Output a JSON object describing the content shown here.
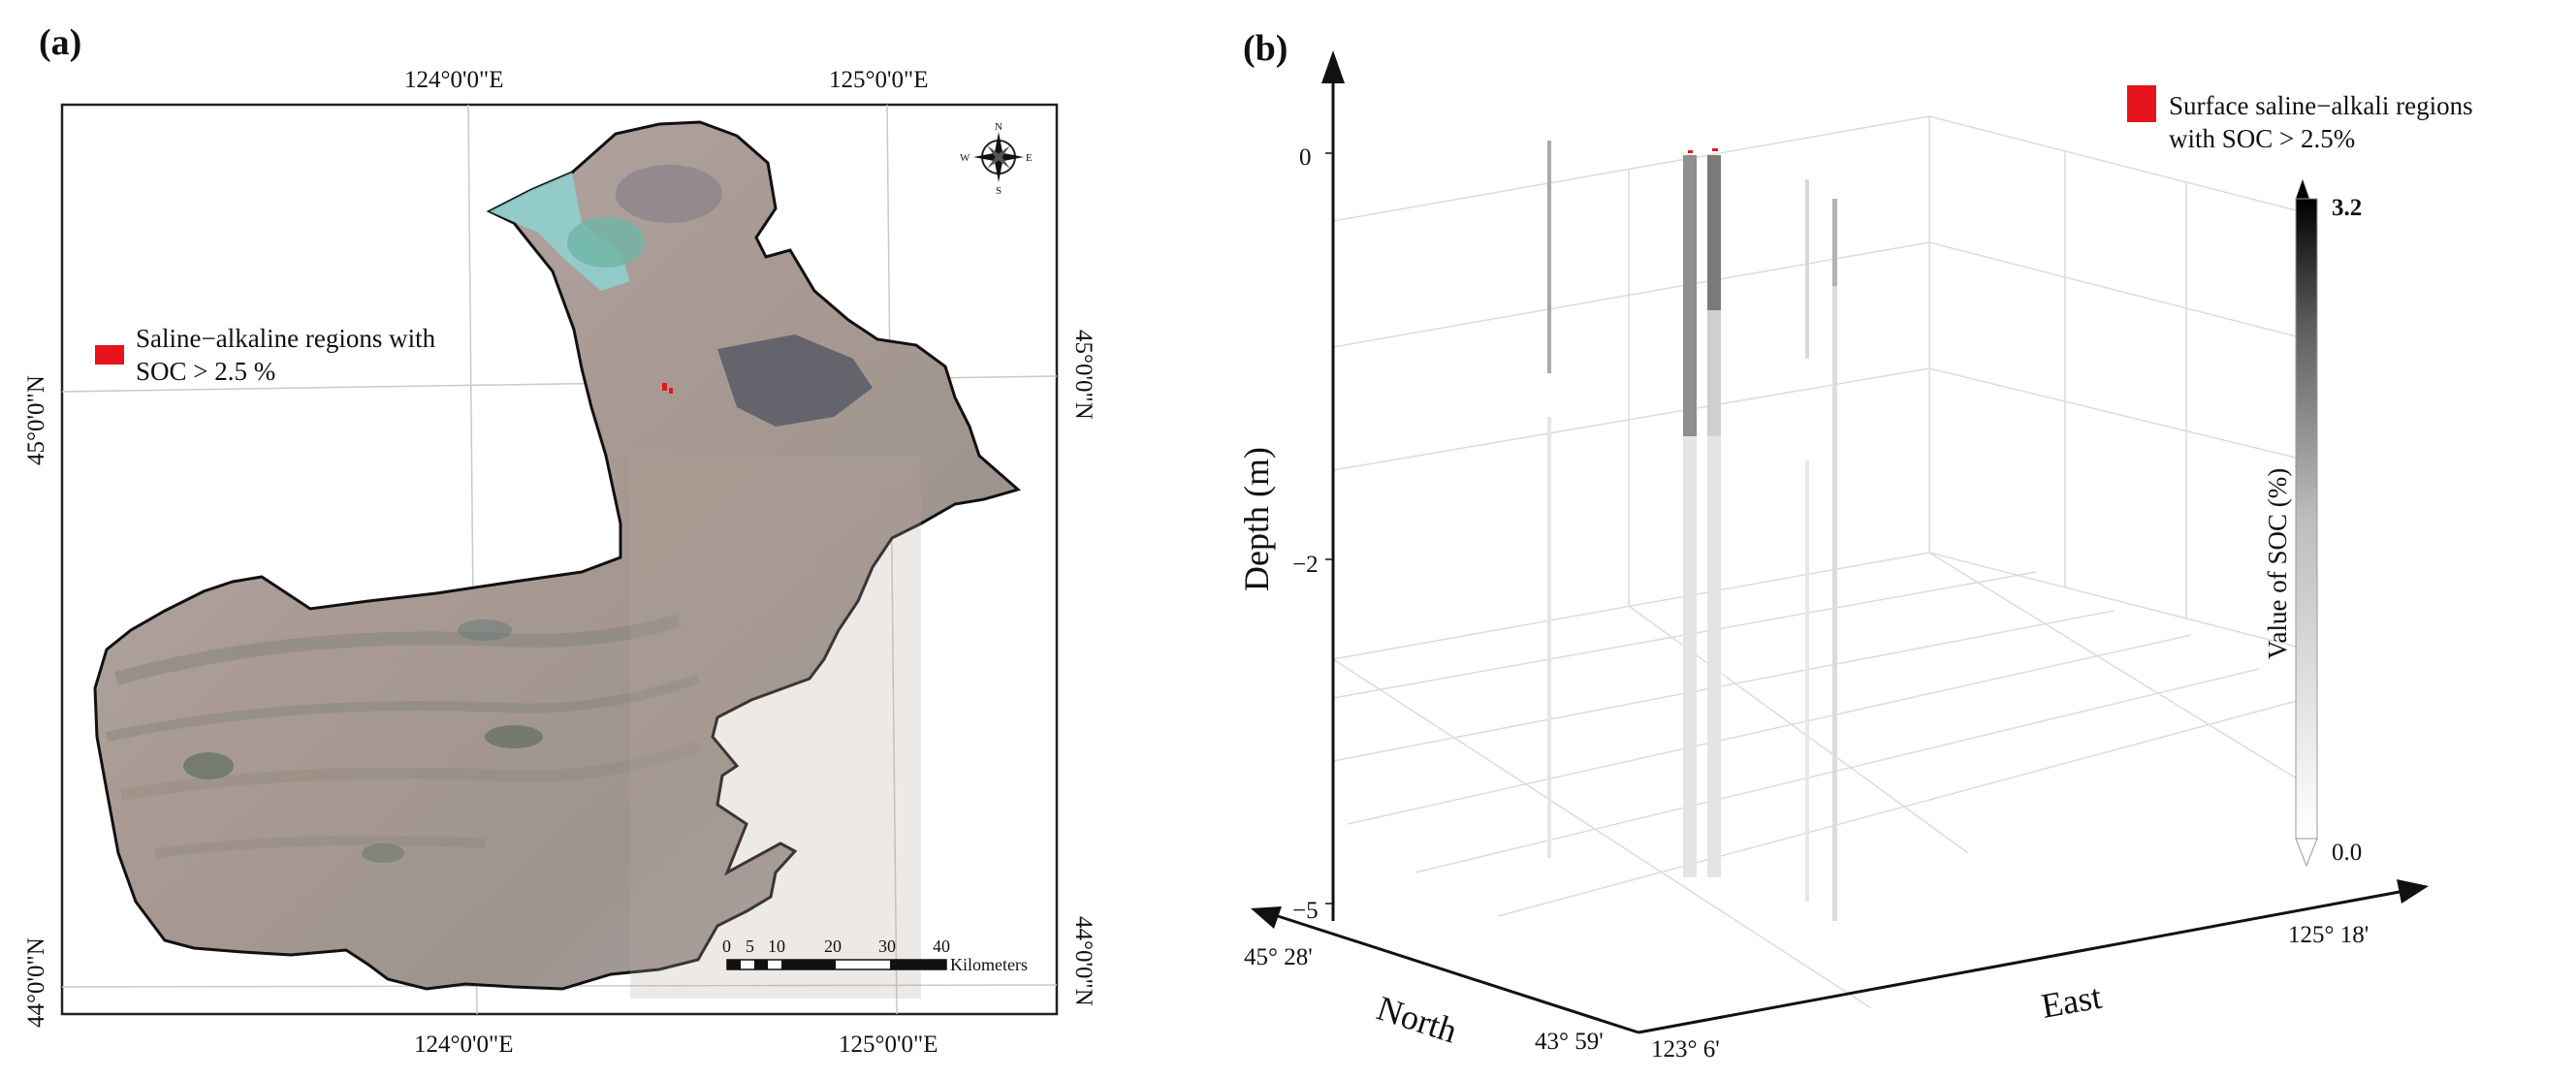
{
  "panel_a": {
    "label": "(a)",
    "top_lon_labels": [
      "124°0'0\"E",
      "125°0'0\"E"
    ],
    "bottom_lon_labels": [
      "124°0'0\"E",
      "125°0'0\"E"
    ],
    "left_lat_labels": [
      "45°0'0\"N",
      "44°0'0\"N"
    ],
    "right_lat_labels": [
      "45°0'0\"N",
      "44°0'0\"N"
    ],
    "legend": {
      "line1": "Saline−alkaline regions with",
      "line2": "SOC > 2.5 %",
      "color": "#e8141c"
    },
    "compass": {
      "n": "N",
      "s": "S",
      "e": "E",
      "w": "W"
    },
    "scale_bar": {
      "ticks": [
        "0",
        "5",
        "10",
        "20",
        "30",
        "40"
      ],
      "unit": "Kilometers"
    }
  },
  "panel_b": {
    "label": "(b)",
    "legend": {
      "line1": "Surface saline−alkali regions",
      "line2": "with SOC > 2.5%",
      "color": "#e8141c"
    },
    "z_ticks": [
      "0",
      "−2",
      "−5"
    ],
    "z_title": "Depth (m)",
    "north_title": "North",
    "east_title": "East",
    "north_ticks": [
      "45°  28'",
      "43°  59'"
    ],
    "east_ticks": [
      "123°  6'",
      "125°  18'"
    ],
    "colorbar": {
      "max": "3.2",
      "min": "0.0",
      "title": "Value of SOC (%)",
      "color_low": "#ffffff",
      "color_high": "#000000"
    }
  }
}
